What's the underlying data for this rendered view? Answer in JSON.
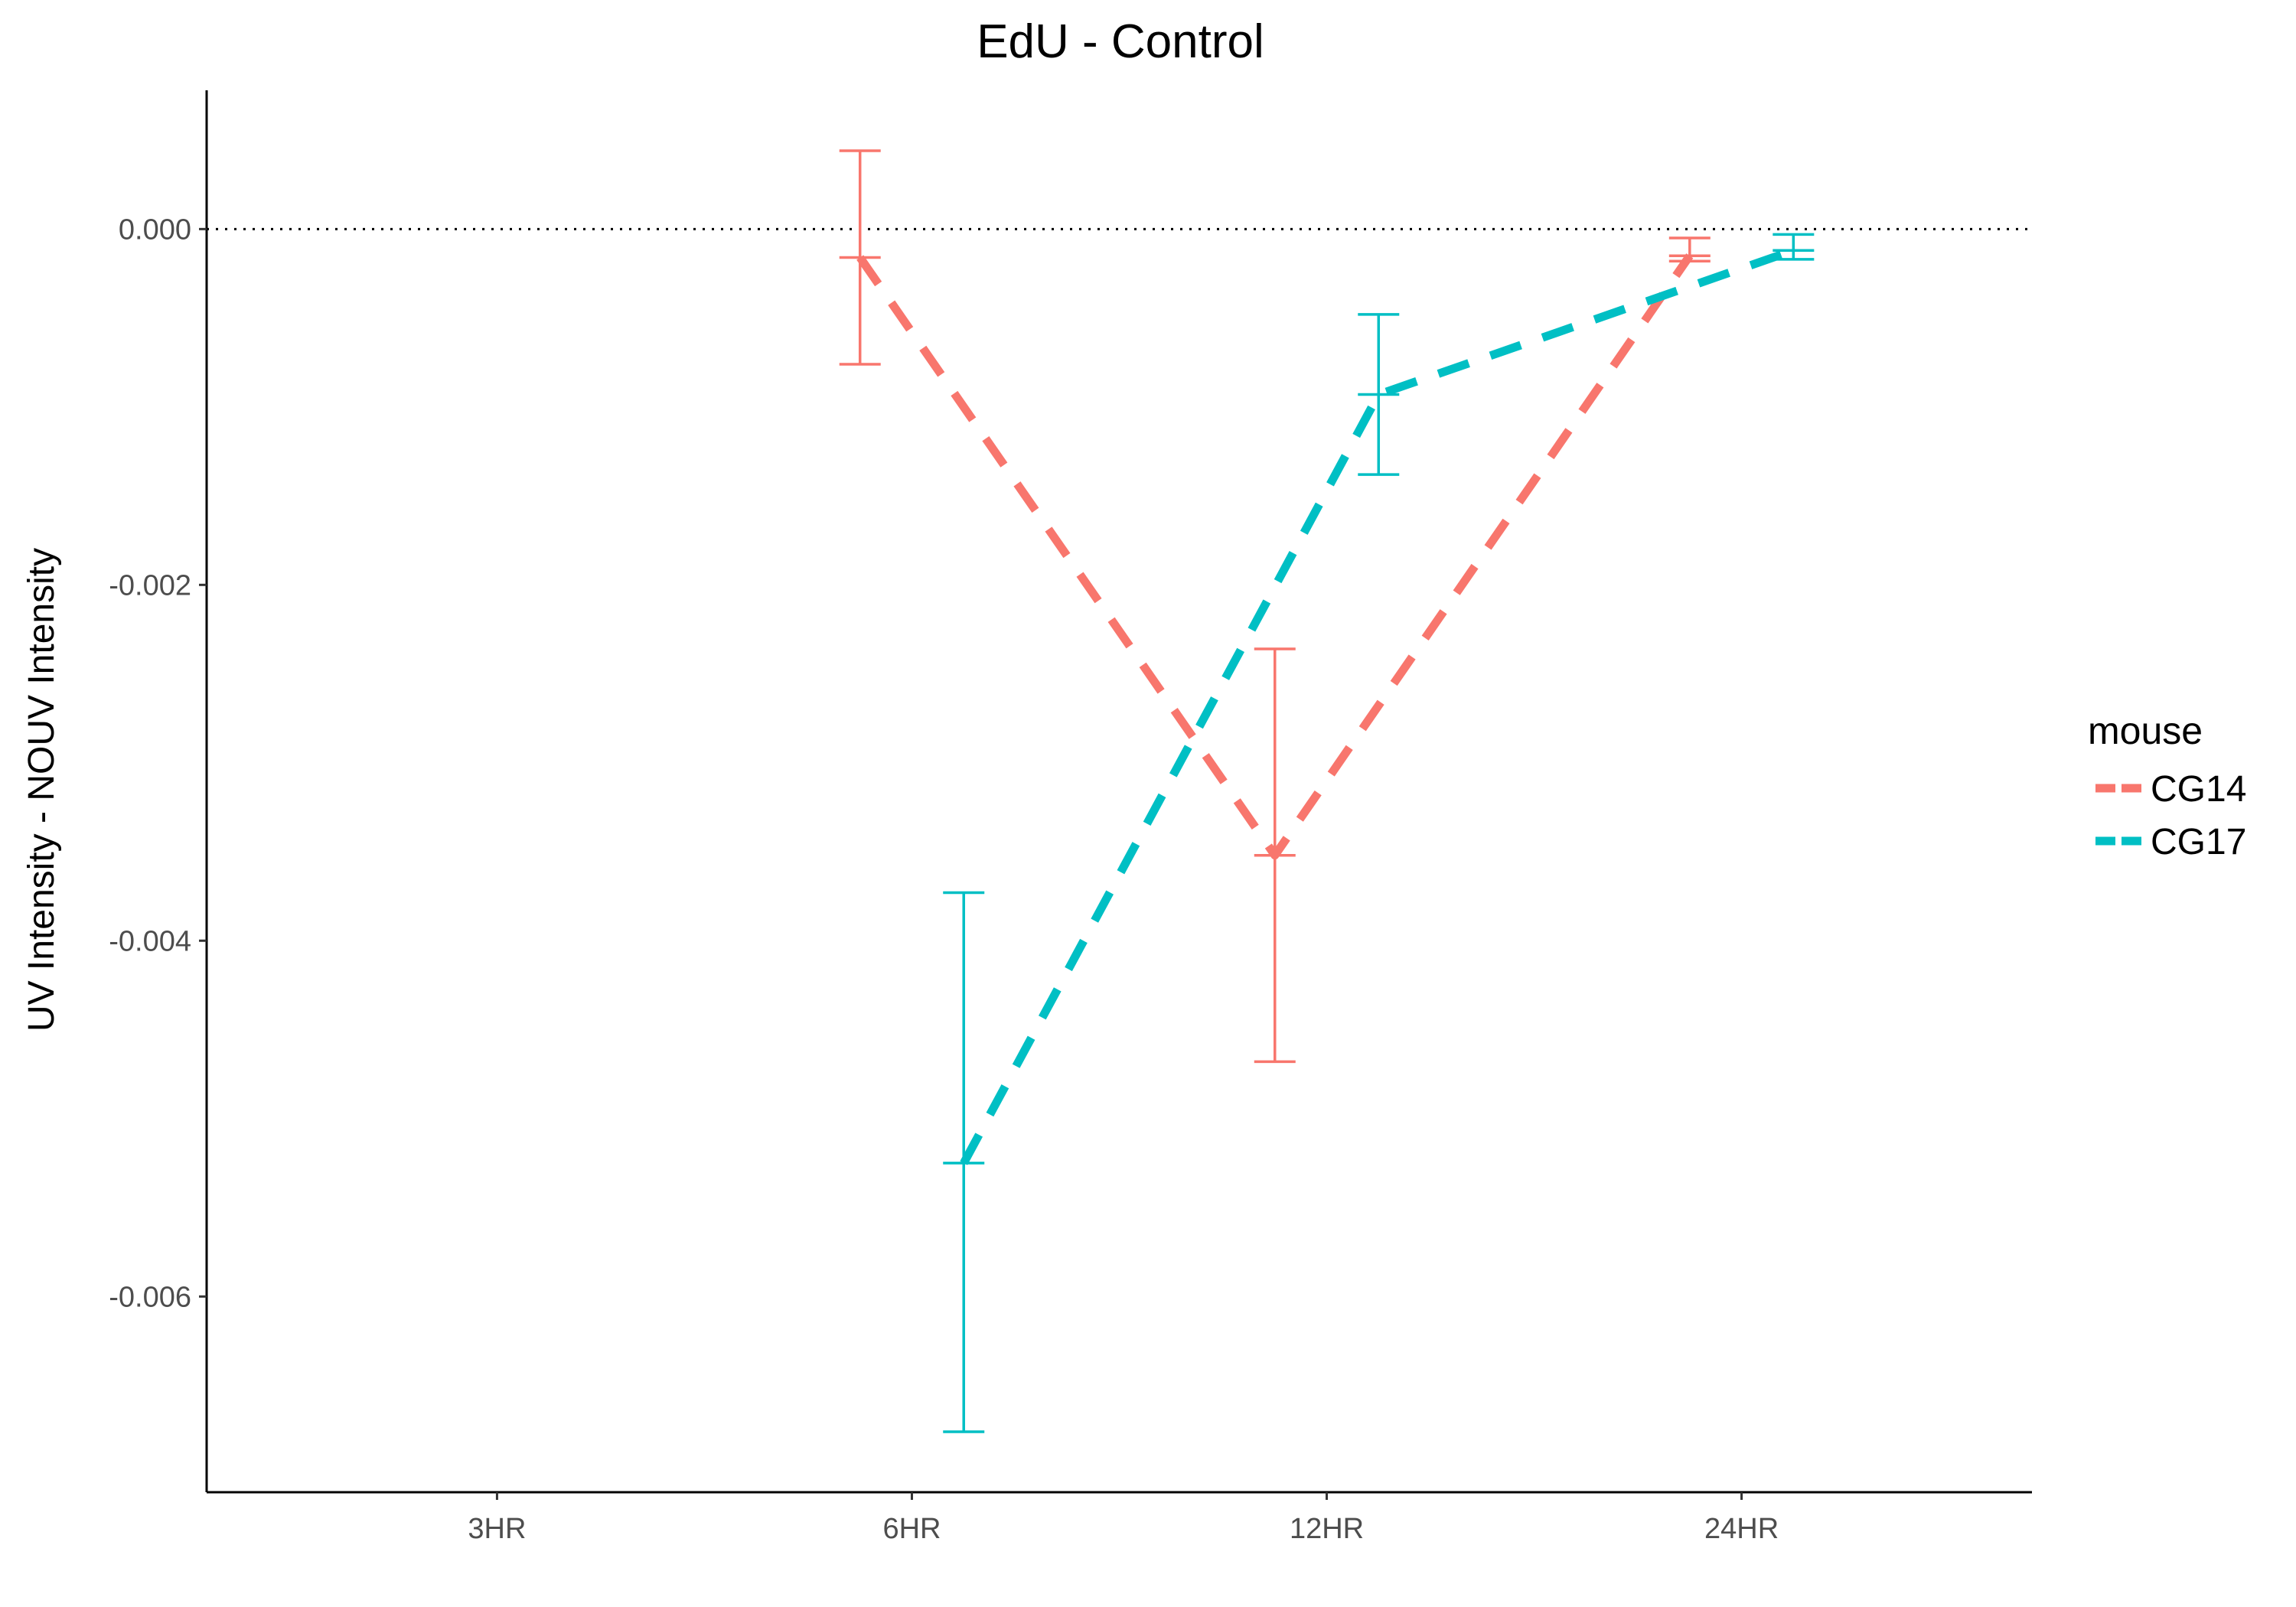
{
  "chart_data": {
    "type": "line",
    "title": "EdU - Control",
    "xlabel": "",
    "ylabel": "UV Intensity - NOUV Intensity",
    "categories": [
      "3HR",
      "6HR",
      "12HR",
      "24HR"
    ],
    "ylim": [
      -0.0071,
      0.00078
    ],
    "yticks": [
      0.0,
      -0.002,
      -0.004,
      -0.006
    ],
    "ytick_labels": [
      "0.000",
      "-0.002",
      "-0.004",
      "-0.006"
    ],
    "reference_line": 0.0,
    "grid": false,
    "legend": {
      "title": "mouse",
      "position": "right"
    },
    "series": [
      {
        "name": "CG14",
        "color": "#F8766D",
        "points": [
          {
            "x": "6HR",
            "y": -0.00016,
            "ymin": -0.00076,
            "ymax": 0.00044
          },
          {
            "x": "12HR",
            "y": -0.00352,
            "ymin": -0.00468,
            "ymax": -0.00236
          },
          {
            "x": "24HR",
            "y": -0.00015,
            "ymin": -0.00018,
            "ymax": -5e-05
          }
        ]
      },
      {
        "name": "CG17",
        "color": "#00BFC4",
        "points": [
          {
            "x": "6HR",
            "y": -0.00525,
            "ymin": -0.00676,
            "ymax": -0.00373
          },
          {
            "x": "12HR",
            "y": -0.00093,
            "ymin": -0.00138,
            "ymax": -0.00048
          },
          {
            "x": "24HR",
            "y": -0.00012,
            "ymin": -0.00017,
            "ymax": -3e-05
          }
        ]
      }
    ]
  }
}
